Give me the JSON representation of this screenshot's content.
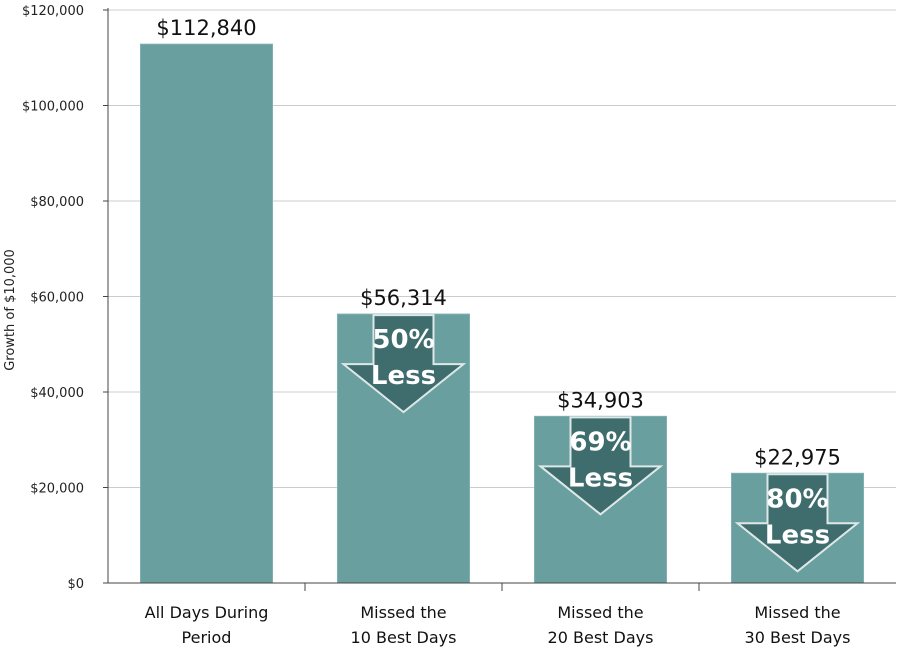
{
  "chart_data": {
    "type": "bar",
    "ylabel": "Growth of $10,000",
    "ylim": [
      0,
      120000
    ],
    "yticks": [
      0,
      20000,
      40000,
      60000,
      80000,
      100000,
      120000
    ],
    "ytick_labels": [
      "$0",
      "$20,000",
      "$40,000",
      "$60,000",
      "$80,000",
      "$100,000",
      "$120,000"
    ],
    "grid": true,
    "categories": [
      [
        "All Days During",
        "Period"
      ],
      [
        "Missed the",
        "10 Best Days"
      ],
      [
        "Missed the",
        "20 Best Days"
      ],
      [
        "Missed the",
        "30 Best Days"
      ]
    ],
    "values": [
      112840,
      56314,
      34903,
      22975
    ],
    "value_labels": [
      "$112,840",
      "$56,314",
      "$34,903",
      "$22,975"
    ],
    "annotations": [
      null,
      [
        "50%",
        "Less"
      ],
      [
        "69%",
        "Less"
      ],
      [
        "80%",
        "Less"
      ]
    ],
    "colors": {
      "bar": "#6a9fa0",
      "bar_edge": "#7fb0b1",
      "arrow": "#3f6d6e",
      "arrow_edge": "#dfe8e8",
      "grid": "#cccccc",
      "axis": "#444444"
    }
  }
}
